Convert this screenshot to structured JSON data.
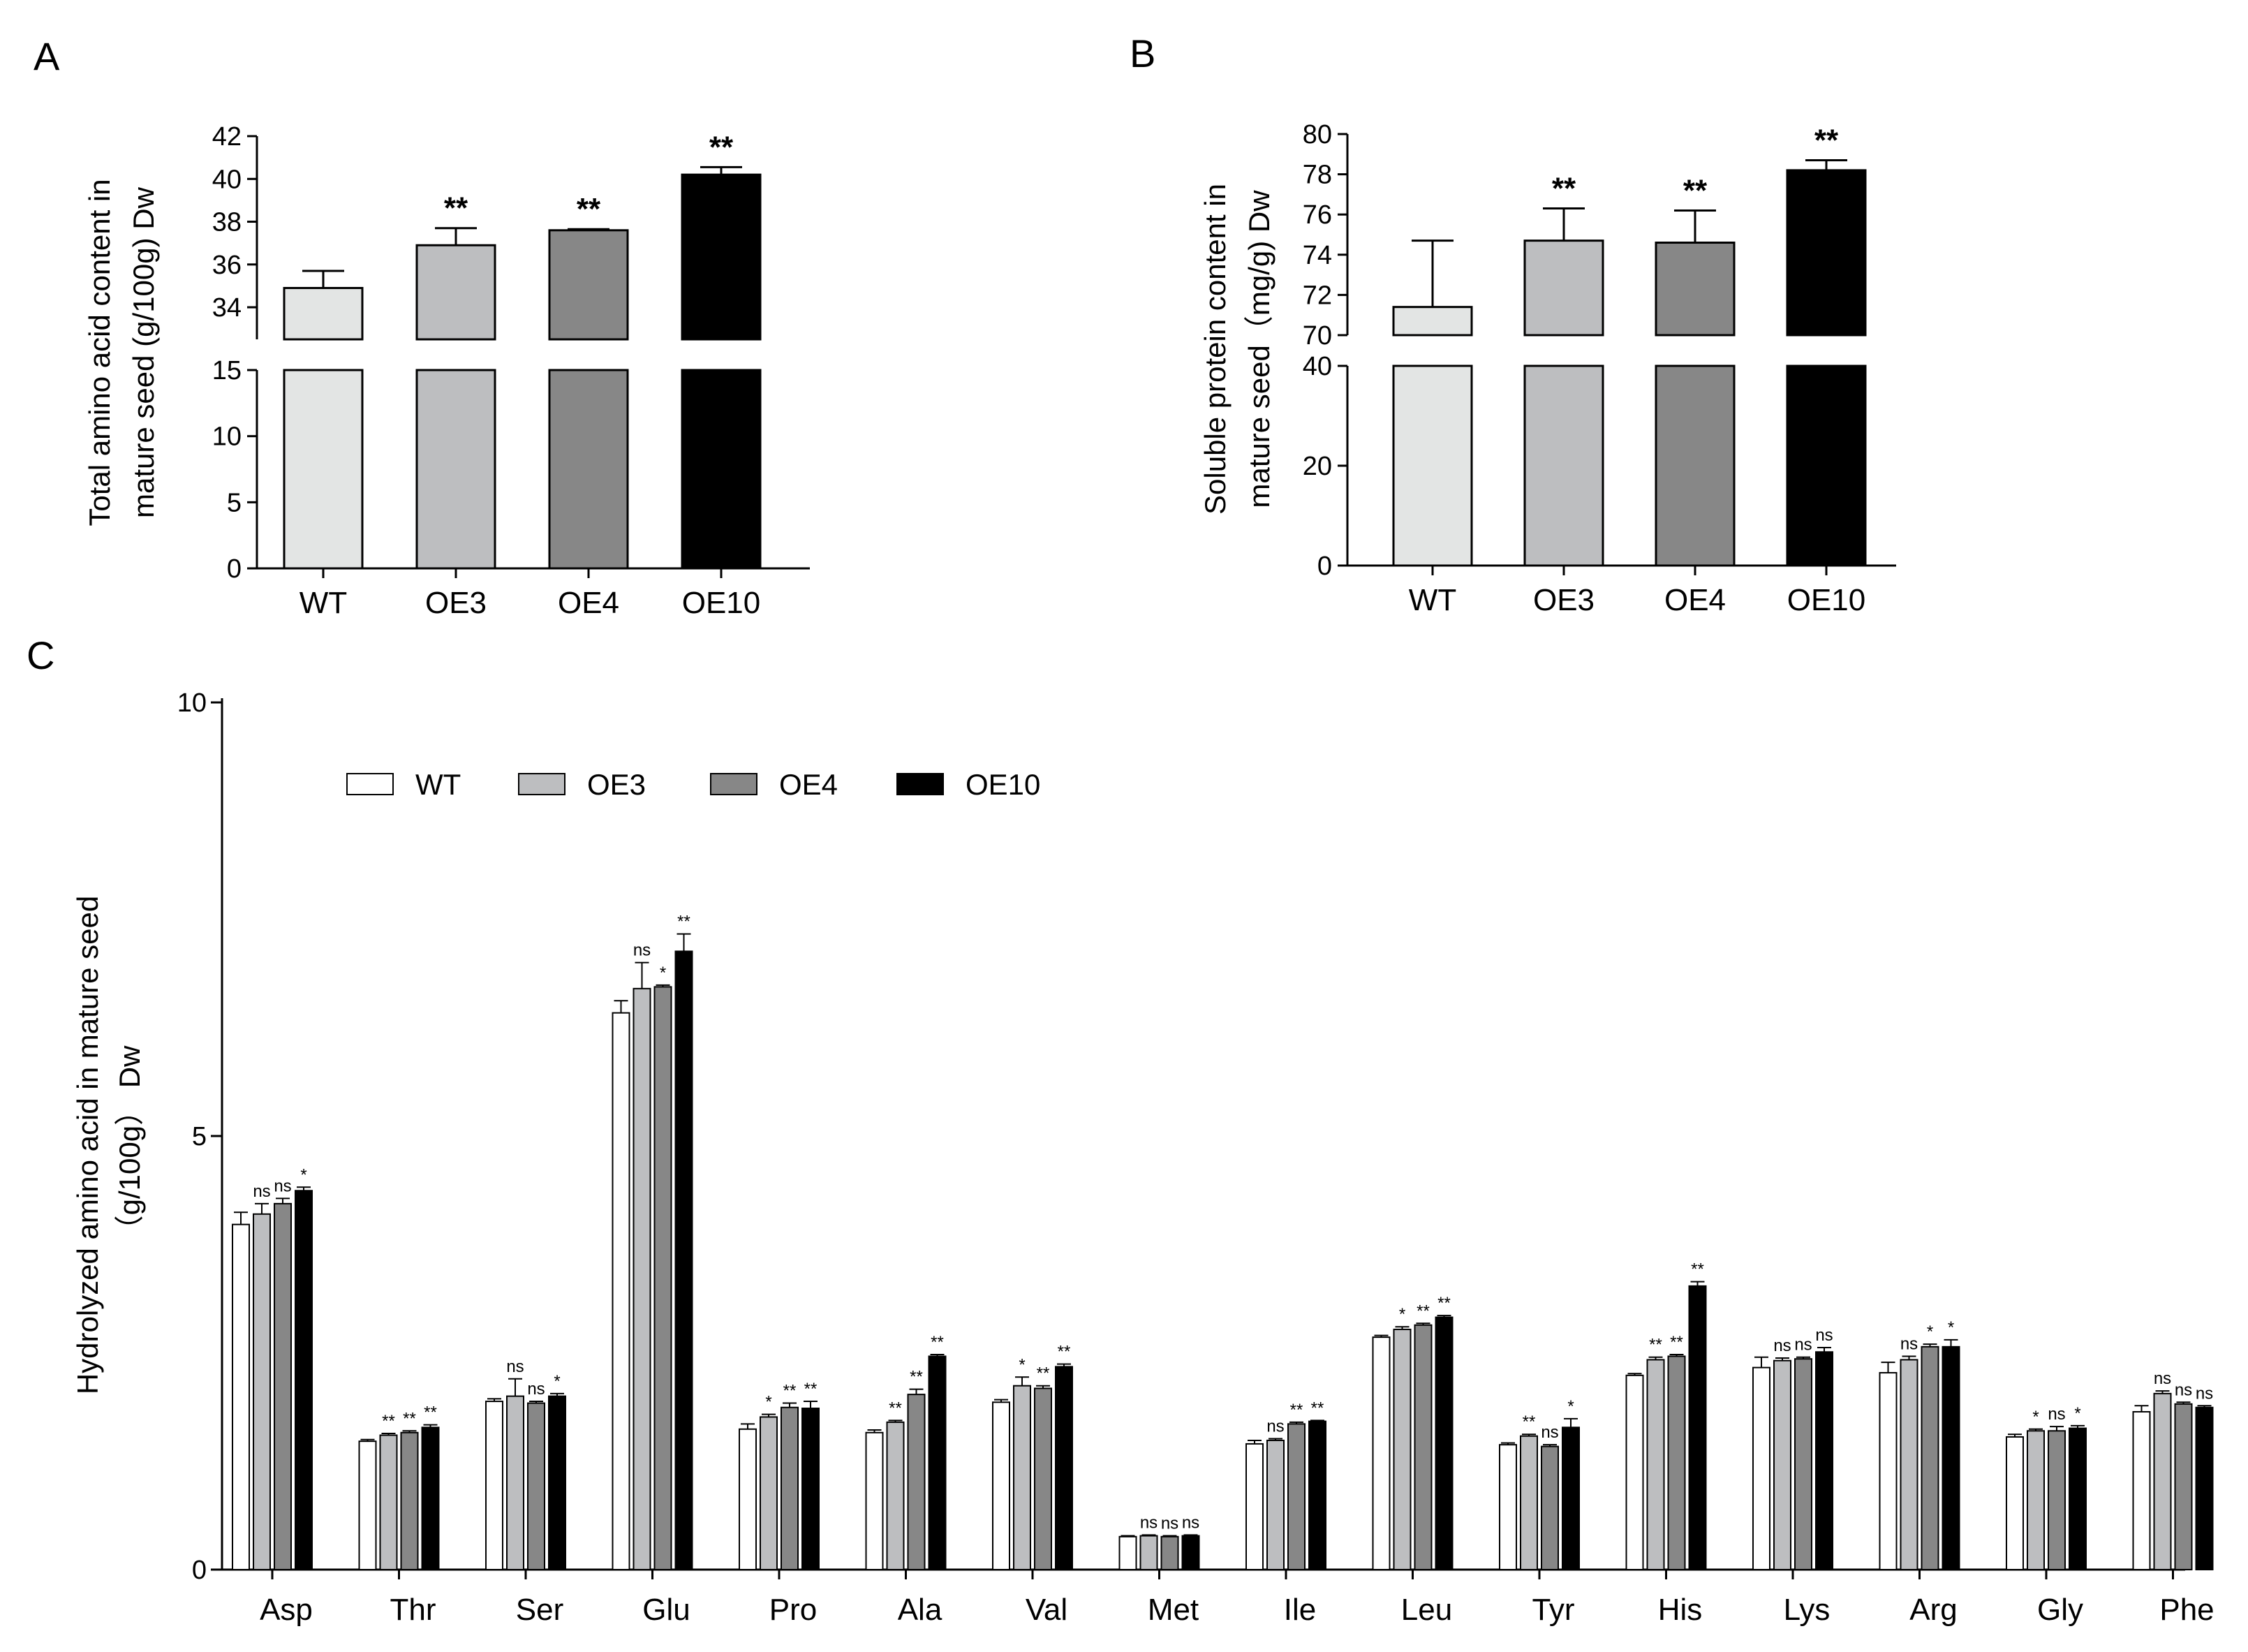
{
  "panels": {
    "A": "A",
    "B": "B",
    "C": "C"
  },
  "chart_data": [
    {
      "id": "A",
      "type": "bar",
      "title": "",
      "ylabel_lines": [
        "Total amino acid content in",
        "mature seed (g/100g) Dw"
      ],
      "categories": [
        "WT",
        "OE3",
        "OE4",
        "OE10"
      ],
      "values": [
        34.9,
        36.9,
        37.6,
        40.2
      ],
      "errors": [
        0.8,
        0.8,
        0.05,
        0.35
      ],
      "significance": [
        "",
        "**",
        "**",
        "**"
      ],
      "colors": [
        "#e3e5e4",
        "#bdbec0",
        "#878787",
        "#000000"
      ],
      "broken_axis": {
        "lower_range": [
          0,
          15
        ],
        "lower_ticks": [
          "0",
          "5",
          "10",
          "15"
        ],
        "upper_range": [
          32.5,
          42
        ],
        "upper_ticks": [
          "34",
          "36",
          "38",
          "40",
          "42"
        ]
      }
    },
    {
      "id": "B",
      "type": "bar",
      "title": "",
      "ylabel_lines": [
        "Soluble protein content in",
        "mature seed（mg/g) Dw"
      ],
      "categories": [
        "WT",
        "OE3",
        "OE4",
        "OE10"
      ],
      "values": [
        71.4,
        74.7,
        74.6,
        78.2
      ],
      "errors": [
        3.3,
        1.6,
        1.6,
        0.5
      ],
      "significance": [
        "",
        "**",
        "**",
        "**"
      ],
      "colors": [
        "#e3e5e4",
        "#bdbec0",
        "#878787",
        "#000000"
      ],
      "broken_axis": {
        "lower_range": [
          0,
          40
        ],
        "lower_ticks": [
          "0",
          "20",
          "40"
        ],
        "upper_range": [
          70,
          80
        ],
        "upper_ticks": [
          "70",
          "72",
          "74",
          "76",
          "78",
          "80"
        ]
      }
    },
    {
      "id": "C",
      "type": "bar",
      "title": "",
      "ylabel_lines": [
        "Hydrolyzed amino acid in mature seed",
        "（g/100g） Dw"
      ],
      "ylim": [
        0,
        10
      ],
      "yticks": [
        "0",
        "5",
        "10"
      ],
      "categories": [
        "Asp",
        "Thr",
        "Ser",
        "Glu",
        "Pro",
        "Ala",
        "Val",
        "Met",
        "Ile",
        "Leu",
        "Tyr",
        "His",
        "Lys",
        "Arg",
        "Gly",
        "Phe"
      ],
      "legend": [
        "WT",
        "OE3",
        "OE4",
        "OE10"
      ],
      "colors": [
        "#ffffff",
        "#bdbec0",
        "#878787",
        "#000000"
      ],
      "series": [
        {
          "name": "WT",
          "values": [
            3.98,
            1.48,
            1.94,
            6.42,
            1.62,
            1.58,
            1.93,
            0.38,
            1.45,
            2.68,
            1.44,
            2.24,
            2.33,
            2.27,
            1.53,
            1.82
          ],
          "errors": [
            0.14,
            0.02,
            0.03,
            0.14,
            0.06,
            0.03,
            0.03,
            0.01,
            0.04,
            0.02,
            0.02,
            0.02,
            0.12,
            0.12,
            0.03,
            0.07
          ],
          "sig": [
            "",
            "",
            "",
            "",
            "",
            "",
            "",
            "",
            "",
            "",
            "",
            "",
            "",
            "",
            "",
            ""
          ]
        },
        {
          "name": "OE3",
          "values": [
            4.1,
            1.55,
            2.0,
            6.7,
            1.76,
            1.7,
            2.12,
            0.39,
            1.49,
            2.77,
            1.54,
            2.42,
            2.41,
            2.42,
            1.6,
            2.03
          ],
          "errors": [
            0.12,
            0.02,
            0.2,
            0.3,
            0.03,
            0.02,
            0.1,
            0.01,
            0.02,
            0.03,
            0.02,
            0.03,
            0.03,
            0.04,
            0.02,
            0.03
          ],
          "sig": [
            "ns",
            "**",
            "ns",
            "ns",
            "*",
            "**",
            "*",
            "ns",
            "ns",
            "*",
            "**",
            "**",
            "ns",
            "ns",
            "*",
            "ns"
          ]
        },
        {
          "name": "OE4",
          "values": [
            4.22,
            1.58,
            1.92,
            6.72,
            1.87,
            2.02,
            2.09,
            0.38,
            1.68,
            2.82,
            1.42,
            2.46,
            2.43,
            2.57,
            1.6,
            1.91
          ],
          "errors": [
            0.06,
            0.02,
            0.02,
            0.02,
            0.05,
            0.06,
            0.03,
            0.01,
            0.02,
            0.02,
            0.02,
            0.02,
            0.02,
            0.03,
            0.05,
            0.02
          ],
          "sig": [
            "ns",
            "**",
            "ns",
            "*",
            "**",
            "**",
            "**",
            "ns",
            "**",
            "**",
            "ns",
            "**",
            "ns",
            "*",
            "ns",
            "ns"
          ]
        },
        {
          "name": "OE10",
          "values": [
            4.37,
            1.64,
            2.0,
            7.13,
            1.86,
            2.46,
            2.34,
            0.39,
            1.71,
            2.91,
            1.64,
            3.27,
            2.51,
            2.57,
            1.63,
            1.87
          ],
          "errors": [
            0.04,
            0.03,
            0.03,
            0.2,
            0.08,
            0.02,
            0.03,
            0.01,
            0.01,
            0.02,
            0.1,
            0.05,
            0.05,
            0.08,
            0.03,
            0.02
          ],
          "sig": [
            "*",
            "**",
            "*",
            "**",
            "**",
            "**",
            "**",
            "ns",
            "**",
            "**",
            "*",
            "**",
            "ns",
            "*",
            "*",
            "ns"
          ]
        }
      ]
    }
  ]
}
